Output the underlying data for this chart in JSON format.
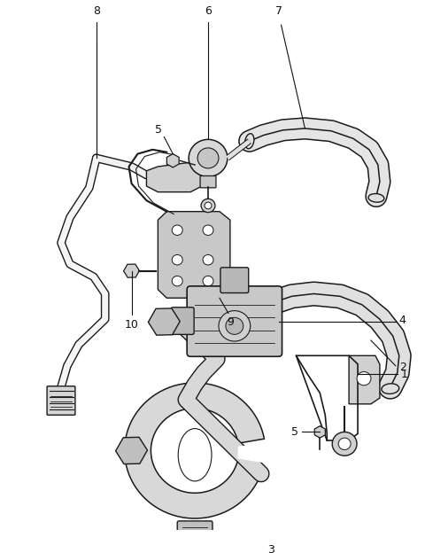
{
  "background_color": "#ffffff",
  "line_color": "#1a1a1a",
  "label_color": "#111111",
  "fig_width": 4.8,
  "fig_height": 6.24,
  "dpi": 100,
  "hose_fill": "#e8e8e8",
  "part_fill": "#d8d8d8",
  "dark_fill": "#b8b8b8"
}
